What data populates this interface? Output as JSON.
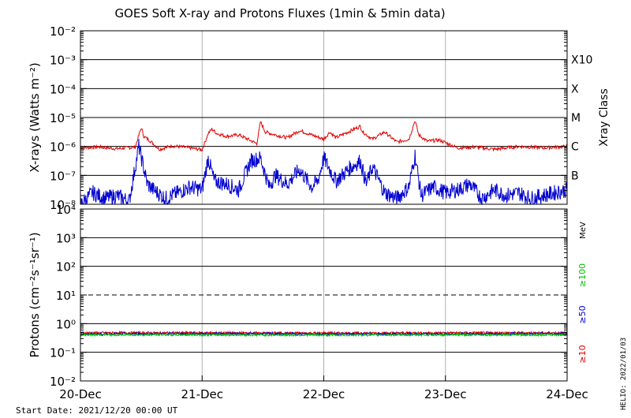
{
  "title": "GOES Soft X-ray and Protons Fluxes  (1min & 5min data)",
  "start_date_label": "Start Date: 2021/12/20 00:00 UT",
  "side_stamp": "HELIO: 2022/01/03",
  "x_tick_labels": [
    "20-Dec",
    "21-Dec",
    "22-Dec",
    "23-Dec",
    "24-Dec"
  ],
  "colors": {
    "xray_long": "#e00000",
    "xray_short": "#0000d0",
    "proton_10": "#e00000",
    "proton_50": "#0000d0",
    "proton_100": "#00c000",
    "grid_vertical": "#b0b0b0"
  },
  "chart_data": [
    {
      "type": "line",
      "name": "xray-panel",
      "ylabel": "X-rays (Watts m⁻²)",
      "right_label": "Xray Class",
      "yscale": "log",
      "ylim_exp": [
        -8,
        -2
      ],
      "ytick_exps": [
        -8,
        -7,
        -6,
        -5,
        -4,
        -3,
        -2
      ],
      "ytick_labels": [
        "10⁻⁸",
        "10⁻⁷",
        "10⁻⁶",
        "10⁻⁵",
        "10⁻⁴",
        "10⁻³",
        "10⁻²"
      ],
      "class_labels": [
        {
          "label": "B",
          "exp": -7
        },
        {
          "label": "C",
          "exp": -6
        },
        {
          "label": "M",
          "exp": -5
        },
        {
          "label": "X",
          "exp": -4
        },
        {
          "label": "X10",
          "exp": -3
        }
      ],
      "xlim_days": [
        0,
        4
      ],
      "series": [
        {
          "key": "long",
          "x_days": [
            0.0,
            0.15,
            0.3,
            0.45,
            0.5,
            0.52,
            0.57,
            0.65,
            0.75,
            0.9,
            1.0,
            1.05,
            1.08,
            1.12,
            1.2,
            1.3,
            1.45,
            1.48,
            1.52,
            1.6,
            1.7,
            1.8,
            1.9,
            2.0,
            2.05,
            2.1,
            2.3,
            2.32,
            2.4,
            2.5,
            2.6,
            2.7,
            2.75,
            2.78,
            2.85,
            2.95,
            3.1,
            3.25,
            3.4,
            3.6,
            3.8,
            4.0
          ],
          "y_exp": [
            -6.05,
            -6.02,
            -6.08,
            -6.02,
            -5.35,
            -5.65,
            -5.8,
            -6.1,
            -5.98,
            -6.05,
            -6.12,
            -5.55,
            -5.4,
            -5.55,
            -5.65,
            -5.6,
            -5.9,
            -5.15,
            -5.5,
            -5.6,
            -5.7,
            -5.45,
            -5.6,
            -5.75,
            -5.5,
            -5.7,
            -5.3,
            -5.5,
            -5.75,
            -5.5,
            -5.85,
            -5.75,
            -5.1,
            -5.6,
            -5.82,
            -5.78,
            -6.05,
            -6.02,
            -6.1,
            -6.0,
            -6.05,
            -6.0
          ]
        },
        {
          "key": "short",
          "x_days": [
            0.0,
            0.1,
            0.2,
            0.3,
            0.4,
            0.48,
            0.55,
            0.6,
            0.7,
            0.8,
            0.9,
            1.0,
            1.05,
            1.1,
            1.2,
            1.3,
            1.4,
            1.48,
            1.55,
            1.6,
            1.7,
            1.8,
            1.9,
            1.95,
            2.0,
            2.1,
            2.2,
            2.3,
            2.35,
            2.4,
            2.5,
            2.6,
            2.7,
            2.75,
            2.8,
            2.9,
            3.0,
            3.1,
            3.2,
            3.3,
            3.4,
            3.5,
            3.6,
            3.7,
            3.8,
            3.9,
            4.0
          ],
          "y_exp": [
            -8.0,
            -7.6,
            -7.8,
            -7.7,
            -7.9,
            -6.0,
            -7.3,
            -7.5,
            -7.8,
            -7.6,
            -7.4,
            -7.5,
            -6.4,
            -7.2,
            -7.3,
            -7.5,
            -6.5,
            -6.4,
            -7.4,
            -7.0,
            -7.3,
            -6.8,
            -7.4,
            -7.2,
            -6.4,
            -7.2,
            -6.8,
            -6.5,
            -7.3,
            -6.7,
            -7.6,
            -7.8,
            -7.4,
            -6.3,
            -7.7,
            -7.4,
            -7.6,
            -7.5,
            -7.3,
            -7.8,
            -7.5,
            -7.7,
            -7.6,
            -7.8,
            -7.7,
            -7.6,
            -7.5
          ]
        }
      ]
    },
    {
      "type": "line",
      "name": "proton-panel",
      "ylabel": "Protons (cm⁻²s⁻¹sr⁻¹)",
      "units_label": "MeV",
      "energy_labels": [
        {
          "key": "p100",
          "label": "≥100"
        },
        {
          "key": "p50",
          "label": "≥50"
        },
        {
          "key": "p10",
          "label": "≥10"
        }
      ],
      "yscale": "log",
      "ylim_exp": [
        -2,
        4
      ],
      "ytick_exps": [
        -2,
        -1,
        0,
        1,
        2,
        3,
        4
      ],
      "ytick_labels": [
        "10⁻²",
        "10⁻¹",
        "10⁰",
        "10¹",
        "10²",
        "10³",
        "10⁴"
      ],
      "dashed_threshold_exp": 1,
      "xlim_days": [
        0,
        4
      ],
      "series": [
        {
          "key": "p10",
          "x_days": [
            0.0,
            1.0,
            2.0,
            3.0,
            4.0
          ],
          "y_exp": [
            -0.32,
            -0.32,
            -0.33,
            -0.32,
            -0.32
          ]
        },
        {
          "key": "p50",
          "x_days": [
            0.0,
            1.0,
            2.0,
            3.0,
            4.0
          ],
          "y_exp": [
            -0.36,
            -0.35,
            -0.36,
            -0.36,
            -0.35
          ]
        },
        {
          "key": "p100",
          "x_days": [
            0.0,
            1.0,
            2.0,
            3.0,
            4.0
          ],
          "y_exp": [
            -0.39,
            -0.39,
            -0.4,
            -0.39,
            -0.39
          ]
        }
      ]
    }
  ]
}
